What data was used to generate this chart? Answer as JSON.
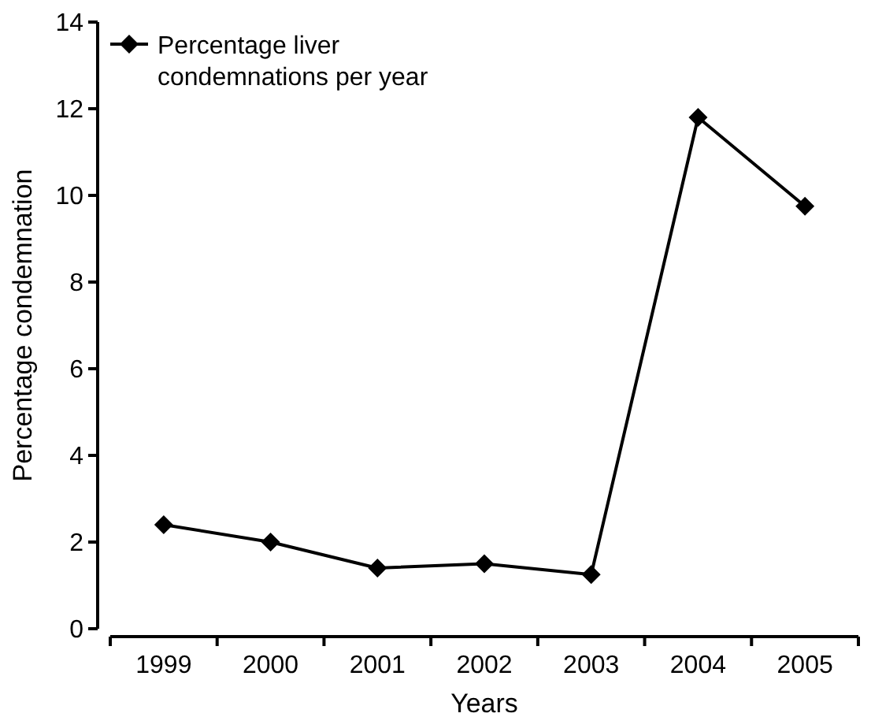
{
  "chart_data": {
    "type": "line",
    "xlabel": "Years",
    "ylabel": "Percentage condemnation",
    "categories": [
      "1999",
      "2000",
      "2001",
      "2002",
      "2003",
      "2004",
      "2005"
    ],
    "series": [
      {
        "name": "Percentage liver condemnations per year",
        "color": "#000000",
        "values": [
          2.4,
          2.0,
          1.4,
          1.5,
          1.25,
          11.8,
          9.75
        ]
      }
    ],
    "ylim": [
      0,
      14
    ],
    "yticks": [
      0,
      2,
      4,
      6,
      8,
      10,
      12,
      14
    ],
    "marker": "diamond",
    "line_style": "solid",
    "legend": "top left",
    "grid": false
  }
}
